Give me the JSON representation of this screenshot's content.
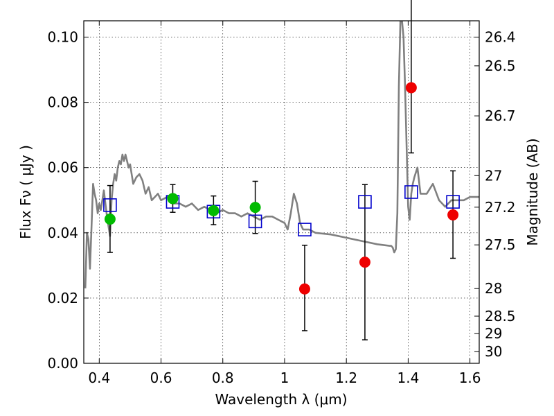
{
  "chart_data": {
    "type": "scatter",
    "xlabel": "Wavelength  λ (μm)",
    "ylabel": "Flux  Fν  ( μJy )",
    "y2label": "Magnitude (AB)",
    "xlim": [
      0.35,
      1.63
    ],
    "ylim": [
      0.0,
      0.105
    ],
    "grid": true,
    "grid_style": "dotted",
    "x_ticks": [
      0.4,
      0.6,
      0.8,
      1.0,
      1.2,
      1.4,
      1.6
    ],
    "x_tick_labels": [
      "0.4",
      "0.6",
      "0.8",
      "1",
      "1.2",
      "1.4",
      "1.6"
    ],
    "y_ticks": [
      0.0,
      0.02,
      0.04,
      0.06,
      0.08,
      0.1
    ],
    "y_tick_labels": [
      "0.00",
      "0.02",
      "0.04",
      "0.06",
      "0.08",
      "0.10"
    ],
    "mag_ticks": [
      26.4,
      26.5,
      26.7,
      27,
      27.2,
      27.5,
      28,
      28.5,
      29,
      30
    ],
    "mag_tick_labels": [
      "26.4",
      "26.5",
      "26.7",
      "27",
      "27.2",
      "27.5",
      "28",
      "28.5",
      "29",
      "30"
    ],
    "series": [
      {
        "kind": "model_spectrum",
        "color": "#808080",
        "x": [
          0.355,
          0.36,
          0.365,
          0.37,
          0.375,
          0.38,
          0.385,
          0.39,
          0.395,
          0.4,
          0.405,
          0.41,
          0.415,
          0.42,
          0.425,
          0.43,
          0.435,
          0.44,
          0.445,
          0.45,
          0.455,
          0.46,
          0.465,
          0.47,
          0.475,
          0.48,
          0.485,
          0.49,
          0.495,
          0.5,
          0.505,
          0.51,
          0.52,
          0.53,
          0.54,
          0.55,
          0.56,
          0.57,
          0.58,
          0.59,
          0.6,
          0.62,
          0.64,
          0.66,
          0.68,
          0.7,
          0.72,
          0.74,
          0.76,
          0.78,
          0.8,
          0.82,
          0.84,
          0.86,
          0.88,
          0.9,
          0.92,
          0.94,
          0.96,
          0.98,
          1.0,
          1.01,
          1.02,
          1.03,
          1.04,
          1.05,
          1.06,
          1.08,
          1.1,
          1.15,
          1.2,
          1.25,
          1.3,
          1.34,
          1.345,
          1.35,
          1.355,
          1.36,
          1.365,
          1.37,
          1.375,
          1.38,
          1.385,
          1.39,
          1.4,
          1.405,
          1.41,
          1.415,
          1.42,
          1.43,
          1.44,
          1.46,
          1.48,
          1.5,
          1.52,
          1.54,
          1.56,
          1.58,
          1.6,
          1.63
        ],
        "y": [
          0.023,
          0.04,
          0.038,
          0.029,
          0.042,
          0.055,
          0.052,
          0.05,
          0.046,
          0.049,
          0.047,
          0.05,
          0.053,
          0.049,
          0.045,
          0.042,
          0.039,
          0.05,
          0.055,
          0.058,
          0.056,
          0.06,
          0.062,
          0.061,
          0.064,
          0.062,
          0.064,
          0.062,
          0.06,
          0.061,
          0.058,
          0.055,
          0.057,
          0.058,
          0.056,
          0.052,
          0.054,
          0.05,
          0.051,
          0.052,
          0.05,
          0.051,
          0.049,
          0.049,
          0.048,
          0.049,
          0.047,
          0.048,
          0.047,
          0.046,
          0.047,
          0.046,
          0.046,
          0.045,
          0.046,
          0.045,
          0.044,
          0.045,
          0.045,
          0.044,
          0.043,
          0.041,
          0.046,
          0.052,
          0.049,
          0.043,
          0.041,
          0.041,
          0.04,
          0.0395,
          0.0385,
          0.0375,
          0.0365,
          0.036,
          0.036,
          0.0355,
          0.034,
          0.035,
          0.046,
          0.085,
          0.105,
          0.105,
          0.1,
          0.085,
          0.048,
          0.044,
          0.052,
          0.055,
          0.057,
          0.06,
          0.052,
          0.052,
          0.055,
          0.05,
          0.048,
          0.05,
          0.05,
          0.05,
          0.051,
          0.051
        ]
      },
      {
        "kind": "model_photometry",
        "marker": "square",
        "color": "#0000cc",
        "x": [
          0.435,
          0.638,
          0.77,
          0.905,
          1.065,
          1.26,
          1.41,
          1.545
        ],
        "y": [
          0.0485,
          0.0495,
          0.0465,
          0.0435,
          0.041,
          0.0495,
          0.0525,
          0.0495
        ]
      },
      {
        "kind": "observed_detection",
        "marker": "circle",
        "color": "#00bb00",
        "x": [
          0.435,
          0.638,
          0.77,
          0.905
        ],
        "y": [
          0.0442,
          0.0505,
          0.0468,
          0.0478
        ],
        "yerr_low": [
          0.0102,
          0.0042,
          0.0043,
          0.008
        ],
        "yerr_high": [
          0.0103,
          0.0043,
          0.0045,
          0.008
        ]
      },
      {
        "kind": "observed_nondetection",
        "marker": "circle",
        "color": "#ee0000",
        "x": [
          1.065,
          1.26,
          1.41,
          1.545
        ],
        "y": [
          0.0228,
          0.031,
          0.0845,
          0.0455
        ],
        "yerr_low": [
          0.0128,
          0.0238,
          0.02,
          0.0133
        ],
        "yerr_high": [
          0.0134,
          0.0238,
          0.02,
          0.0135
        ],
        "yerr_high_extra": [
          null,
          null,
          0.02,
          null
        ]
      }
    ]
  }
}
